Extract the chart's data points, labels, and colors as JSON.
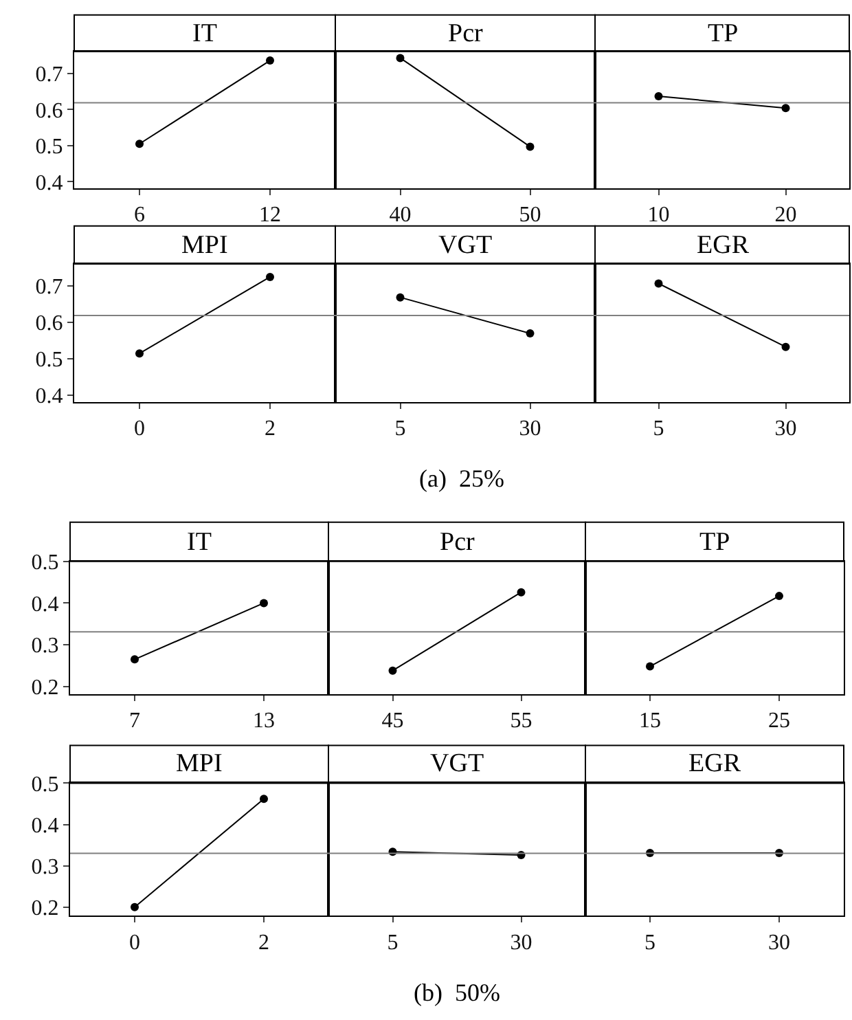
{
  "chart_data": [
    {
      "type": "line",
      "title": "IT",
      "categories": [
        "6",
        "12"
      ],
      "values": [
        0.505,
        0.736
      ],
      "color": "#000000",
      "marker": "circle",
      "ylim": [
        0.382,
        0.761
      ],
      "yticks": [
        0.4,
        0.5,
        0.6,
        0.7
      ],
      "ref_lines": [
        {
          "axis": "y",
          "value": 0.619,
          "color": "#808080"
        }
      ]
    },
    {
      "type": "line",
      "title": "Pcr",
      "categories": [
        "40",
        "50"
      ],
      "values": [
        0.743,
        0.497
      ],
      "color": "#000000",
      "marker": "circle",
      "ylim": [
        0.382,
        0.761
      ],
      "tick_labels": "x",
      "ref_lines": [
        {
          "axis": "y",
          "value": 0.619,
          "color": "#808080"
        }
      ]
    },
    {
      "type": "line",
      "title": "TP",
      "categories": [
        "10",
        "20"
      ],
      "values": [
        0.637,
        0.604
      ],
      "color": "#000000",
      "marker": "circle",
      "ylim": [
        0.382,
        0.761
      ],
      "tick_labels": "x",
      "ref_lines": [
        {
          "axis": "y",
          "value": 0.619,
          "color": "#808080"
        }
      ]
    },
    {
      "type": "line",
      "title": "MPI",
      "categories": [
        "0",
        "2"
      ],
      "values": [
        0.515,
        0.725
      ],
      "color": "#000000",
      "marker": "circle",
      "ylim": [
        0.382,
        0.761
      ],
      "yticks": [
        0.4,
        0.5,
        0.6,
        0.7
      ],
      "ref_lines": [
        {
          "axis": "y",
          "value": 0.619,
          "color": "#808080"
        }
      ]
    },
    {
      "type": "line",
      "title": "VGT",
      "categories": [
        "5",
        "30"
      ],
      "values": [
        0.669,
        0.57
      ],
      "color": "#000000",
      "marker": "circle",
      "ylim": [
        0.382,
        0.761
      ],
      "tick_labels": "x",
      "ref_lines": [
        {
          "axis": "y",
          "value": 0.619,
          "color": "#808080"
        }
      ],
      "annotations": [
        "(a)  25%"
      ]
    },
    {
      "type": "line",
      "title": "EGR",
      "categories": [
        "5",
        "30"
      ],
      "values": [
        0.707,
        0.533
      ],
      "color": "#000000",
      "marker": "circle",
      "ylim": [
        0.382,
        0.761
      ],
      "tick_labels": "x",
      "ref_lines": [
        {
          "axis": "y",
          "value": 0.619,
          "color": "#808080"
        }
      ]
    },
    {
      "type": "line",
      "title": "IT",
      "categories": [
        "7",
        "13"
      ],
      "values": [
        0.265,
        0.4
      ],
      "color": "#000000",
      "marker": "circle",
      "ylim": [
        0.182,
        0.5
      ],
      "yticks": [
        0.2,
        0.3,
        0.4,
        0.5
      ],
      "ref_lines": [
        {
          "axis": "y",
          "value": 0.331,
          "color": "#808080"
        }
      ]
    },
    {
      "type": "line",
      "title": "Pcr",
      "categories": [
        "45",
        "55"
      ],
      "values": [
        0.238,
        0.426
      ],
      "color": "#000000",
      "marker": "circle",
      "ylim": [
        0.182,
        0.5
      ],
      "tick_labels": "x",
      "ref_lines": [
        {
          "axis": "y",
          "value": 0.331,
          "color": "#808080"
        }
      ]
    },
    {
      "type": "line",
      "title": "TP",
      "categories": [
        "15",
        "25"
      ],
      "values": [
        0.248,
        0.417
      ],
      "color": "#000000",
      "marker": "circle",
      "ylim": [
        0.182,
        0.5
      ],
      "tick_labels": "x",
      "ref_lines": [
        {
          "axis": "y",
          "value": 0.331,
          "color": "#808080"
        }
      ]
    },
    {
      "type": "line",
      "title": "MPI",
      "categories": [
        "0",
        "2"
      ],
      "values": [
        0.2,
        0.462
      ],
      "color": "#000000",
      "marker": "circle",
      "ylim": [
        0.179,
        0.5
      ],
      "yticks": [
        0.2,
        0.3,
        0.4,
        0.5
      ],
      "ref_lines": [
        {
          "axis": "y",
          "value": 0.33,
          "color": "#808080"
        }
      ]
    },
    {
      "type": "line",
      "title": "VGT",
      "categories": [
        "5",
        "30"
      ],
      "values": [
        0.334,
        0.326
      ],
      "color": "#000000",
      "marker": "circle",
      "ylim": [
        0.179,
        0.5
      ],
      "tick_labels": "x",
      "ref_lines": [
        {
          "axis": "y",
          "value": 0.33,
          "color": "#808080"
        }
      ],
      "annotations": [
        "(b)  50%"
      ]
    },
    {
      "type": "line",
      "title": "EGR",
      "categories": [
        "5",
        "30"
      ],
      "values": [
        0.331,
        0.331
      ],
      "color": "#000000",
      "marker": "circle",
      "ylim": [
        0.179,
        0.5
      ],
      "tick_labels": "x",
      "ref_lines": [
        {
          "axis": "y",
          "value": 0.33,
          "color": "#808080"
        }
      ]
    }
  ]
}
